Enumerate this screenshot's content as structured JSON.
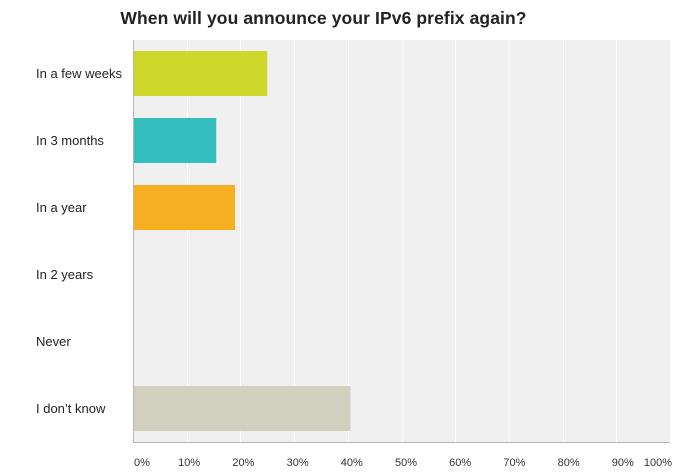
{
  "chart_data": {
    "type": "bar",
    "orientation": "horizontal",
    "title": "When will you announce your IPv6 prefix again?",
    "categories": [
      "In a few weeks",
      "In 3 months",
      "In a year",
      "In 2 years",
      "Never",
      "I don’t know"
    ],
    "values": [
      25,
      15.5,
      19,
      0,
      0,
      40.5
    ],
    "unit": "%",
    "xlim": [
      0,
      100
    ],
    "x_ticks": [
      "0%",
      "10%",
      "20%",
      "30%",
      "40%",
      "50%",
      "60%",
      "70%",
      "80%",
      "90%",
      "100%"
    ],
    "colors": [
      "#cfd62a",
      "#33bfc0",
      "#f7af22",
      "#cfd62a",
      "#33bfc0",
      "#d1cfbe"
    ],
    "grid": true,
    "plot_background": "#f0f0f0"
  }
}
